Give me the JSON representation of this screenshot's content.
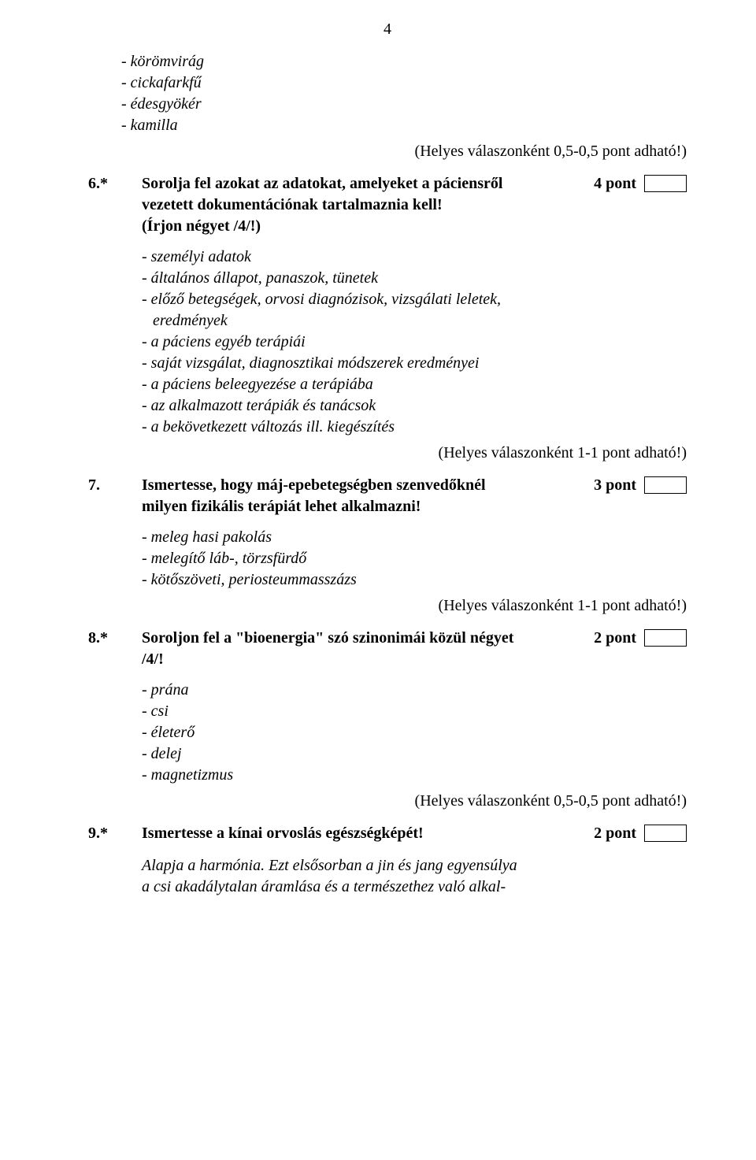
{
  "page_number": "4",
  "intro_list": [
    "- körömvirág",
    "- cickafarkfű",
    "- édesgyökér",
    "- kamilla"
  ],
  "intro_note": "(Helyes válaszonként 0,5-0,5 pont adható!)",
  "q6": {
    "num": "6.*",
    "title_line1": "Sorolja fel azokat az adatokat, amelyeket a páciensről",
    "title_line2": "vezetett dokumentációnak tartalmaznia kell!",
    "sub": "(Írjon négyet /4/!)",
    "pts": "4 pont",
    "answers": [
      "- személyi adatok",
      "- általános állapot, panaszok, tünetek",
      "- előző betegségek, orvosi diagnózisok, vizsgálati leletek,",
      "  eredmények",
      "- a páciens egyéb terápiái",
      "- saját vizsgálat, diagnosztikai módszerek eredményei",
      "- a páciens beleegyezése a terápiába",
      "- az alkalmazott terápiák és tanácsok",
      "- a bekövetkezett változás ill. kiegészítés"
    ],
    "note": "(Helyes válaszonként 1-1 pont adható!)"
  },
  "q7": {
    "num": "7.",
    "title_line1": "Ismertesse, hogy máj-epebetegségben szenvedőknél",
    "title_line2": "milyen fizikális terápiát lehet alkalmazni!",
    "pts": "3 pont",
    "answers": [
      "- meleg hasi pakolás",
      "- melegítő láb-, törzsfürdő",
      "- kötőszöveti, periosteummasszázs"
    ],
    "note": "(Helyes válaszonként 1-1 pont adható!)"
  },
  "q8": {
    "num": "8.*",
    "title_line1": "Soroljon fel a \"bioenergia\" szó szinonimái közül négyet",
    "title_line2": "/4/!",
    "pts": "2 pont",
    "answers": [
      "- prána",
      "- csi",
      "- életerő",
      "- delej",
      "- magnetizmus"
    ],
    "note": "(Helyes válaszonként 0,5-0,5 pont adható!)"
  },
  "q9": {
    "num": "9.*",
    "title": "Ismertesse a kínai orvoslás egészségképét!",
    "pts": "2 pont",
    "body_line1": "Alapja a harmónia. Ezt elsősorban a jin és jang egyensúlya",
    "body_line2": "a csi akadálytalan áramlása és a természethez való alkal-"
  }
}
